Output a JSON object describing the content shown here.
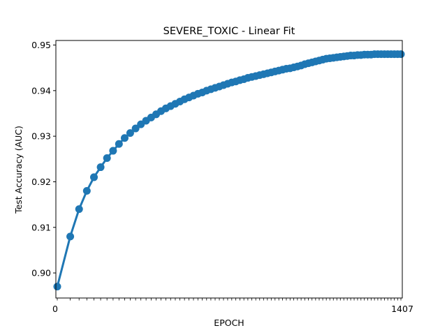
{
  "chart_data": {
    "type": "line",
    "title": "SEVERE_TOXIC - Linear Fit",
    "xlabel": "EPOCH",
    "ylabel": "Test Accuracy (AUC)",
    "ylim": [
      0.8945,
      0.951
    ],
    "yticks": [
      "0.90",
      "0.91",
      "0.92",
      "0.93",
      "0.94",
      "0.95"
    ],
    "grid": false,
    "color": "#1f77b4",
    "series": [
      {
        "name": "",
        "x_start": 0,
        "x_end": 1407,
        "values": [
          0.897,
          0.908,
          0.914,
          0.918,
          0.921,
          0.9232,
          0.9252,
          0.9268,
          0.9283,
          0.9296,
          0.9307,
          0.9317,
          0.9326,
          0.9334,
          0.9341,
          0.9348,
          0.9355,
          0.9361,
          0.9366,
          0.9371,
          0.9376,
          0.9381,
          0.9385,
          0.9389,
          0.9393,
          0.9396,
          0.94,
          0.9403,
          0.9406,
          0.9409,
          0.9412,
          0.9415,
          0.9418,
          0.942,
          0.9423,
          0.9425,
          0.9428,
          0.943,
          0.9432,
          0.9434,
          0.9436,
          0.9438,
          0.944,
          0.9442,
          0.9444,
          0.9446,
          0.9448,
          0.9449,
          0.9451,
          0.9453,
          0.9455,
          0.9458,
          0.946,
          0.9462,
          0.9464,
          0.9466,
          0.9468,
          0.947,
          0.9471,
          0.9472,
          0.9473,
          0.9474,
          0.9475,
          0.9476,
          0.9477,
          0.9477,
          0.9478,
          0.9478,
          0.9479,
          0.9479,
          0.9479,
          0.948,
          0.948,
          0.948,
          0.948,
          0.948,
          0.948,
          0.948,
          0.948,
          0.948
        ]
      }
    ]
  }
}
